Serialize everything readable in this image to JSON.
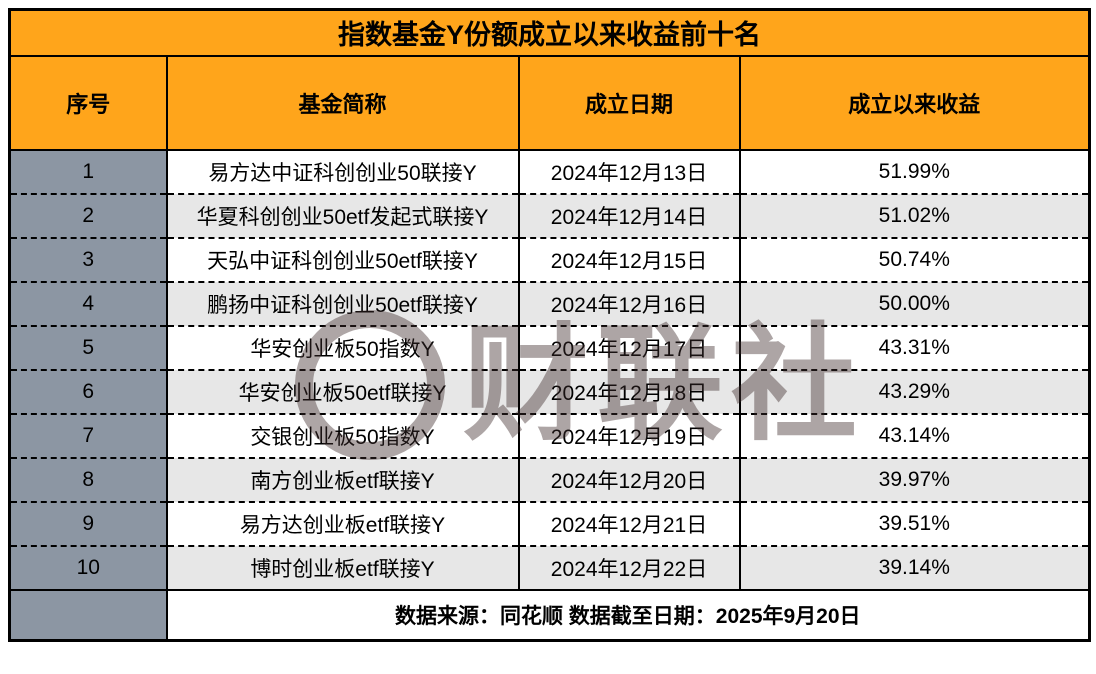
{
  "chart_data": {
    "type": "table",
    "title": "指数基金Y份额成立以来收益前十名",
    "columns": [
      "序号",
      "基金简称",
      "成立日期",
      "成立以来收益"
    ],
    "rows": [
      {
        "rank": "1",
        "name": "易方达中证科创创业50联接Y",
        "date": "2024年12月13日",
        "return": "51.99%"
      },
      {
        "rank": "2",
        "name": "华夏科创创业50etf发起式联接Y",
        "date": "2024年12月14日",
        "return": "51.02%"
      },
      {
        "rank": "3",
        "name": "天弘中证科创创业50etf联接Y",
        "date": "2024年12月15日",
        "return": "50.74%"
      },
      {
        "rank": "4",
        "name": "鹏扬中证科创创业50etf联接Y",
        "date": "2024年12月16日",
        "return": "50.00%"
      },
      {
        "rank": "5",
        "name": "华安创业板50指数Y",
        "date": "2024年12月17日",
        "return": "43.31%"
      },
      {
        "rank": "6",
        "name": "华安创业板50etf联接Y",
        "date": "2024年12月18日",
        "return": "43.29%"
      },
      {
        "rank": "7",
        "name": "交银创业板50指数Y",
        "date": "2024年12月19日",
        "return": "43.14%"
      },
      {
        "rank": "8",
        "name": "南方创业板etf联接Y",
        "date": "2024年12月20日",
        "return": "39.97%"
      },
      {
        "rank": "9",
        "name": "易方达创业板etf联接Y",
        "date": "2024年12月21日",
        "return": "39.51%"
      },
      {
        "rank": "10",
        "name": "博时创业板etf联接Y",
        "date": "2024年12月22日",
        "return": "39.14%"
      }
    ],
    "footer": "数据来源：同花顺  数据截至日期：2025年9月20日",
    "watermark": "财联社"
  },
  "colors": {
    "orange": "#ffa51b",
    "rank-gray": "#8c96a3",
    "alt-row": "#e7e7e7",
    "border": "#000000"
  }
}
